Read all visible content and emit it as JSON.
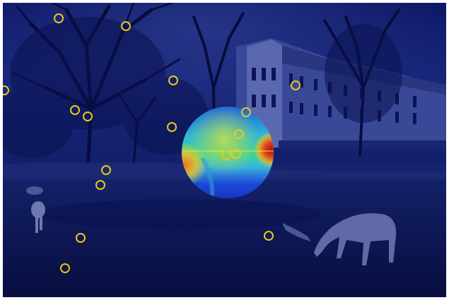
{
  "image": {
    "subject": "",
    "colors": {
      "tint": "#0a1468",
      "sky": "#1c2a7c",
      "ground": "#0e1a5e",
      "marker": "#e8c91a",
      "heat_hot": "#d8261e",
      "heat_cool": "#1b3fd6"
    },
    "marker_count": 18,
    "icons": [
      "fixation-marker-icon",
      "heatmap-disk"
    ]
  }
}
